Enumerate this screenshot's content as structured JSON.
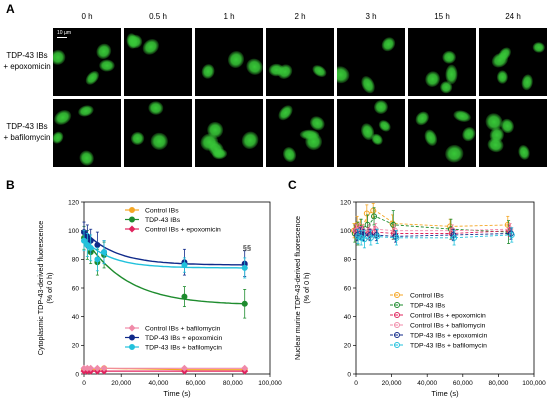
{
  "panel_a": {
    "letter": "A",
    "time_labels": [
      "0 h",
      "0.5 h",
      "1 h",
      "2 h",
      "3 h",
      "15 h",
      "24 h"
    ],
    "rows": [
      {
        "line1": "TDP-43 IBs",
        "line2": "+ epoxomicin"
      },
      {
        "line1": "TDP-43 IBs",
        "line2": "+ bafilomycin"
      }
    ],
    "scale_bar": "10 µm",
    "cell_color": "#38c838"
  },
  "panel_b": {
    "letter": "B"
  },
  "panel_c": {
    "letter": "C"
  },
  "chart_data": [
    {
      "type": "line",
      "ylabel_lines": [
        "Cytoplasmic TDP-43-derived fluorescence",
        "(% of 0 h)"
      ],
      "xlabel": "Time (s)",
      "xlim": [
        0,
        100000
      ],
      "ylim": [
        0,
        120
      ],
      "xticks": [
        0,
        20000,
        40000,
        60000,
        80000,
        100000
      ],
      "xtick_labels": [
        "0",
        "20,000",
        "40,000",
        "60,000",
        "80,000",
        "100,000"
      ],
      "yticks": [
        0,
        20,
        40,
        60,
        80,
        100,
        120
      ],
      "annotation": "§§",
      "x": [
        0,
        1800,
        3600,
        7200,
        10800,
        54000,
        86400
      ],
      "legend_top": [
        "Control IBs",
        "TDP-43 IBs",
        "Control IBs + epoxomicin"
      ],
      "legend_bottom": [
        "Control IBs + bafilomycin",
        "TDP-43 IBs + epoxomicin",
        "TDP-43 IBs + bafilomycin"
      ],
      "series": [
        {
          "name": "Control IBs",
          "color": "#f5a623",
          "marker": "circle",
          "values": [
            3,
            3,
            3,
            3,
            4,
            3,
            3
          ],
          "errors": [
            0.5,
            0.5,
            0.5,
            0.5,
            0.5,
            0.5,
            0.5
          ]
        },
        {
          "name": "TDP-43 IBs",
          "color": "#1e8c2e",
          "marker": "circle",
          "values": [
            95,
            90,
            85,
            78,
            83,
            54,
            49
          ],
          "errors": [
            8,
            10,
            8,
            9,
            9,
            7,
            10
          ]
        },
        {
          "name": "Control IBs + epoxomicin",
          "color": "#e0245e",
          "marker": "diamond",
          "values": [
            2,
            2,
            2,
            2,
            2,
            2,
            2
          ],
          "errors": [
            0.5,
            0.5,
            0.5,
            0.5,
            0.5,
            0.5,
            0.5
          ]
        },
        {
          "name": "Control IBs + bafilomycin",
          "color": "#f08aa8",
          "marker": "diamond",
          "values": [
            4,
            4,
            4,
            4,
            4,
            4,
            4
          ],
          "errors": [
            0.5,
            0.5,
            0.5,
            0.5,
            0.5,
            0.5,
            0.5
          ]
        },
        {
          "name": "TDP-43 IBs + epoxomicin",
          "color": "#102a8a",
          "marker": "circle",
          "values": [
            99,
            96,
            93,
            90,
            85,
            78,
            77
          ],
          "errors": [
            7,
            8,
            8,
            9,
            8,
            9,
            9
          ]
        },
        {
          "name": "TDP-43 IBs + bafilomycin",
          "color": "#22c1dc",
          "marker": "circle",
          "values": [
            93,
            90,
            88,
            80,
            85,
            76,
            74
          ],
          "errors": [
            7,
            8,
            9,
            8,
            8,
            5,
            7
          ]
        }
      ]
    },
    {
      "type": "line",
      "ylabel_lines": [
        "Nuclear murine TDP-43-derived fluorescence",
        "(% of 0 h)"
      ],
      "xlabel": "Time (s)",
      "xlim": [
        0,
        100000
      ],
      "ylim": [
        0,
        120
      ],
      "xticks": [
        0,
        20000,
        40000,
        60000,
        80000,
        100000
      ],
      "xtick_labels": [
        "0",
        "20,000",
        "40,000",
        "60,000",
        "80,000",
        "100,000"
      ],
      "yticks": [
        0,
        20,
        40,
        60,
        80,
        100,
        120
      ],
      "x": [
        0,
        1800,
        3600,
        7200,
        10800,
        21600,
        54000,
        86400
      ],
      "legend": [
        "Control IBs",
        "TDP-43 IBs",
        "Control IBs + epoxomicin",
        "Control IBs + bafilomycin",
        "TDP-43 IBs + epoxomicin",
        "TDP-43 IBs + bafilomycin"
      ],
      "series": [
        {
          "name": "Control IBs",
          "color": "#f5a623",
          "marker": "circle",
          "values": [
            100,
            104,
            103,
            112,
            114,
            105,
            103,
            104
          ],
          "errors": [
            5,
            6,
            5,
            6,
            5,
            6,
            5,
            6
          ]
        },
        {
          "name": "TDP-43 IBs",
          "color": "#1e8c2e",
          "marker": "circle",
          "values": [
            98,
            98,
            102,
            104,
            110,
            104,
            101,
            99
          ],
          "errors": [
            6,
            8,
            6,
            7,
            6,
            10,
            7,
            8
          ]
        },
        {
          "name": "Control IBs + epoxomicin",
          "color": "#e0245e",
          "marker": "circle",
          "values": [
            100,
            99,
            99,
            98,
            99,
            98,
            98,
            100
          ],
          "errors": [
            4,
            4,
            4,
            4,
            4,
            4,
            4,
            4
          ]
        },
        {
          "name": "Control IBs + bafilomycin",
          "color": "#f08aa8",
          "marker": "circle",
          "values": [
            100,
            101,
            100,
            100,
            101,
            100,
            100,
            101
          ],
          "errors": [
            4,
            4,
            4,
            4,
            4,
            4,
            4,
            4
          ]
        },
        {
          "name": "TDP-43 IBs + epoxomicin",
          "color": "#102a8a",
          "marker": "circle",
          "values": [
            97,
            98,
            97,
            97,
            97,
            96,
            97,
            98
          ],
          "errors": [
            4,
            4,
            4,
            4,
            4,
            4,
            4,
            4
          ]
        },
        {
          "name": "TDP-43 IBs + bafilomycin",
          "color": "#22c1dc",
          "marker": "circle",
          "values": [
            96,
            95,
            94,
            95,
            96,
            95,
            95,
            97
          ],
          "errors": [
            5,
            5,
            6,
            5,
            5,
            5,
            5,
            5
          ]
        }
      ]
    }
  ]
}
